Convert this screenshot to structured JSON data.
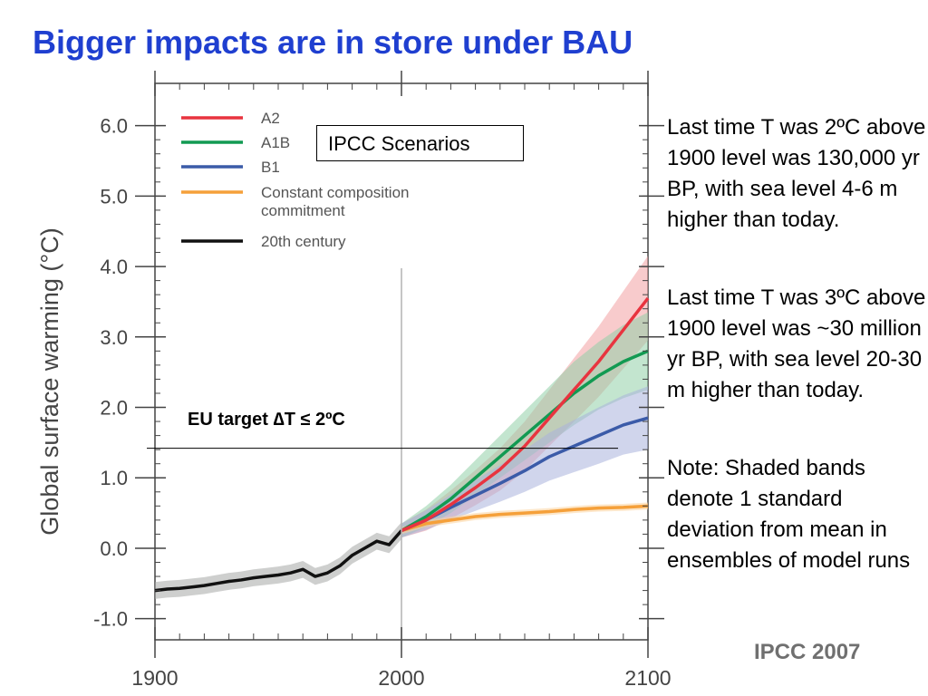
{
  "slide": {
    "title": "Bigger impacts are in store under BAU",
    "credit": "IPCC 2007",
    "annotations": [
      "Last time T was 2ºC above 1900 level was 130,000 yr BP, with sea level 4-6 m higher than today.",
      "Last time T was 3ºC above 1900 level was ~30 million yr BP, with sea level 20-30 m higher than today.",
      "Note: Shaded bands denote 1 standard deviation from mean in ensembles of model runs"
    ],
    "scenario_box": "IPCC Scenarios",
    "eu_target": "EU target ∆T ≤ 2ºC"
  },
  "chart_data": {
    "type": "line",
    "title": "",
    "xlabel": "",
    "ylabel": "Global surface warming (°C)",
    "xlim": [
      1900,
      2100
    ],
    "ylim": [
      -1.3,
      6.6
    ],
    "x_ticks": [
      1900,
      2000,
      2100
    ],
    "x_tick_labels": [
      "1900",
      "2000",
      "2100"
    ],
    "y_ticks": [
      -1,
      0,
      1,
      2,
      3,
      4,
      5,
      6
    ],
    "y_tick_labels": [
      "-1.0",
      "0.0",
      "1.0",
      "2.0",
      "3.0",
      "4.0",
      "5.0",
      "6.0"
    ],
    "grid": false,
    "legend_position": "top-left",
    "reference_line": {
      "label": "EU target ∆T ≤ 2ºC",
      "y": 1.42
    },
    "series": [
      {
        "name": "A2",
        "color": "#e8343f",
        "band_color": "#f2a0a3",
        "x": [
          2000,
          2010,
          2020,
          2030,
          2040,
          2050,
          2060,
          2070,
          2080,
          2090,
          2100
        ],
        "values": [
          0.25,
          0.4,
          0.62,
          0.86,
          1.12,
          1.45,
          1.85,
          2.25,
          2.65,
          3.1,
          3.55
        ],
        "band": [
          0.1,
          0.15,
          0.2,
          0.25,
          0.3,
          0.35,
          0.4,
          0.45,
          0.5,
          0.55,
          0.6
        ]
      },
      {
        "name": "A1B",
        "color": "#129a52",
        "band_color": "#92cfa7",
        "x": [
          2000,
          2010,
          2020,
          2030,
          2040,
          2050,
          2060,
          2070,
          2080,
          2090,
          2100
        ],
        "values": [
          0.25,
          0.45,
          0.7,
          1.0,
          1.3,
          1.6,
          1.9,
          2.2,
          2.45,
          2.65,
          2.8
        ],
        "band": [
          0.1,
          0.15,
          0.2,
          0.25,
          0.3,
          0.35,
          0.4,
          0.45,
          0.48,
          0.52,
          0.55
        ]
      },
      {
        "name": "B1",
        "color": "#3b5ba8",
        "band_color": "#a9b3dc",
        "x": [
          2000,
          2010,
          2020,
          2030,
          2040,
          2050,
          2060,
          2070,
          2080,
          2090,
          2100
        ],
        "values": [
          0.25,
          0.4,
          0.58,
          0.75,
          0.92,
          1.1,
          1.3,
          1.45,
          1.6,
          1.75,
          1.85
        ],
        "band": [
          0.1,
          0.14,
          0.18,
          0.22,
          0.26,
          0.3,
          0.34,
          0.37,
          0.4,
          0.42,
          0.45
        ]
      },
      {
        "name": "Constant composition commitment",
        "color": "#f5a03a",
        "band_color": "#fbd39e",
        "x": [
          2000,
          2010,
          2020,
          2030,
          2040,
          2050,
          2060,
          2070,
          2080,
          2090,
          2100
        ],
        "values": [
          0.25,
          0.35,
          0.4,
          0.45,
          0.48,
          0.5,
          0.52,
          0.55,
          0.57,
          0.58,
          0.6
        ],
        "band": [
          0.05,
          0.05,
          0.05,
          0.05,
          0.05,
          0.05,
          0.05,
          0.05,
          0.05,
          0.05,
          0.05
        ]
      },
      {
        "name": "20th century",
        "color": "#111111",
        "band_color": "#a5a8a6",
        "x": [
          1900,
          1905,
          1910,
          1915,
          1920,
          1925,
          1930,
          1935,
          1940,
          1945,
          1950,
          1955,
          1960,
          1965,
          1970,
          1975,
          1980,
          1985,
          1990,
          1995,
          2000
        ],
        "values": [
          -0.6,
          -0.58,
          -0.57,
          -0.55,
          -0.53,
          -0.5,
          -0.47,
          -0.45,
          -0.42,
          -0.4,
          -0.38,
          -0.35,
          -0.3,
          -0.4,
          -0.35,
          -0.25,
          -0.1,
          0.0,
          0.1,
          0.05,
          0.25
        ],
        "band": [
          0.12,
          0.12,
          0.12,
          0.12,
          0.12,
          0.12,
          0.12,
          0.12,
          0.12,
          0.12,
          0.12,
          0.12,
          0.12,
          0.12,
          0.12,
          0.12,
          0.12,
          0.12,
          0.12,
          0.12,
          0.12
        ]
      }
    ]
  }
}
